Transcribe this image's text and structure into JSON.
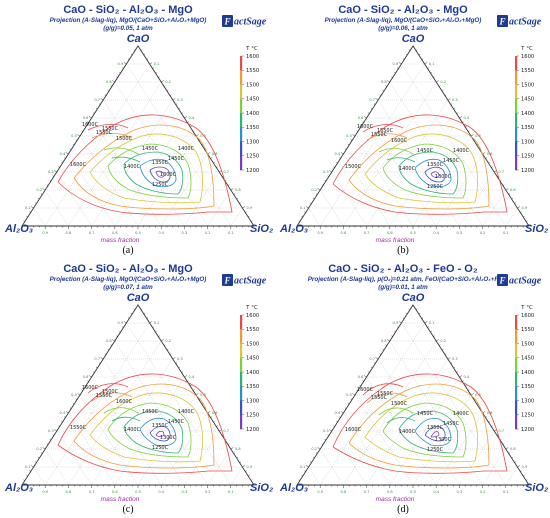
{
  "panels": [
    {
      "system": "CaO - SiO₂ - Al₂O₃ - MgO",
      "projection": "Projection (A-Slag-liq), MgO/(CaO+SiO₂+Al₂O₃+MgO)",
      "condition": "(g/g)=0.05, 1 atm",
      "caption": "(a)",
      "labels": [
        "1600C",
        "1550C",
        "1500C",
        "1450C",
        "1400C",
        "1350C",
        "1300C",
        "1250C",
        "1600C",
        "1550C",
        "1450C",
        "1400C"
      ]
    },
    {
      "system": "CaO - SiO₂ - Al₂O₃ - MgO",
      "projection": "Projection (A-Slag-liq), MgO/(CaO+SiO₂+Al₂O₃+MgO)",
      "condition": "(g/g)=0.06, 1 atm",
      "caption": "(b)",
      "labels": [
        "1500C",
        "1550C",
        "1600C",
        "1450C",
        "1400C",
        "1350C",
        "1300C",
        "1250C",
        "1600C",
        "1550C",
        "1450C",
        "1400C"
      ]
    },
    {
      "system": "CaO - SiO₂ - Al₂O₃ - MgO",
      "projection": "Projection (A-Slag-liq), MgO/(CaO+SiO₂+Al₂O₃+MgO)",
      "condition": "(g/g)=0.07, 1 atm",
      "caption": "(c)",
      "labels": [
        "1550C",
        "1500C",
        "1600C",
        "1450C",
        "1400C",
        "1350C",
        "1300C",
        "1250C",
        "1600C",
        "1550C",
        "1450C",
        "1400C"
      ]
    },
    {
      "system": "CaO - SiO₂ - Al₂O₃ - FeO - O₂",
      "projection": "Projection (A-Slag-liq), p(O₂)=0.21 atm, FeO/(CaO+SiO₂+Al₂O₃+F",
      "condition": "(g/g)=0.01, 1 atm",
      "caption": "(d)",
      "labels": [
        "1600C",
        "1550C",
        "1500C",
        "1450C",
        "1400C",
        "1350C",
        "1300C",
        "1250C",
        "1600C",
        "1550C",
        "1450C",
        "1400C"
      ]
    }
  ],
  "vertices": {
    "top": "CaO",
    "left": "Al₂O₃",
    "right": "SiO₂"
  },
  "axis_label": "mass fraction",
  "logo": "FactSage",
  "colorbar": {
    "unit": "T °C",
    "ticks": [
      "1600",
      "1550",
      "1500",
      "1450",
      "1400",
      "1350",
      "1300",
      "1250",
      "1200"
    ]
  },
  "tick_values": [
    "0.9",
    "0.8",
    "0.7",
    "0.6",
    "0.5",
    "0.4",
    "0.3",
    "0.2",
    "0.1"
  ],
  "colors": {
    "title": "#1f3a93",
    "axis_label": "#9b2d9b",
    "tick_label": "#3a8f3a",
    "iso_1600": "#e84a4a",
    "iso_1550": "#ee9c3a",
    "iso_1500": "#d8c63a",
    "iso_1450": "#7fcf3a",
    "iso_1400": "#2fb27a",
    "iso_1350": "#2a8fd0",
    "iso_1300": "#3a50c8",
    "iso_1250": "#7a3ac8"
  }
}
